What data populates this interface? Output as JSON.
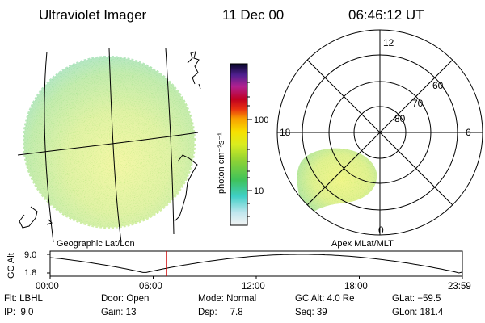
{
  "header": {
    "title": "Ultraviolet Imager",
    "date": "11 Dec 00",
    "time": "06:46:12 UT"
  },
  "left_map": {
    "caption": "Geographic Lat/Lon"
  },
  "right_map": {
    "caption": "Apex MLat/MLT",
    "mlt_labels": {
      "top": "12",
      "left": "18",
      "right": "6",
      "bottom": "0"
    },
    "lat_labels": [
      "60",
      "70",
      "80"
    ]
  },
  "colorbar": {
    "unit_label": "photon cm⁻²s⁻¹",
    "ticks": [
      "100",
      "10"
    ]
  },
  "timeline": {
    "axis_title": "GC Alt",
    "y_ticks": [
      "9.0",
      "1.8"
    ],
    "x_ticks": [
      "00:00",
      "06:00",
      "12:00",
      "18:00",
      "23:59"
    ],
    "current_marker_hours": 6.77,
    "alt_min": 1.8,
    "alt_max": 9.0
  },
  "info": {
    "row1": {
      "flt": "Flt: LBHL",
      "door": "Door: Open",
      "mode": "Mode: Normal",
      "gcalt": "GC Alt: 4.0 Re",
      "glat": "GLat: −59.5"
    },
    "row2": {
      "ip": "IP:  9.0",
      "gain": "Gain: 13",
      "dsp": "Dsp:     7.8",
      "seq": "Seq: 39",
      "glon": "GLon: 181.4"
    }
  },
  "colors": {
    "orbit_line": "#000000",
    "current_time_marker": "#cc0000"
  }
}
